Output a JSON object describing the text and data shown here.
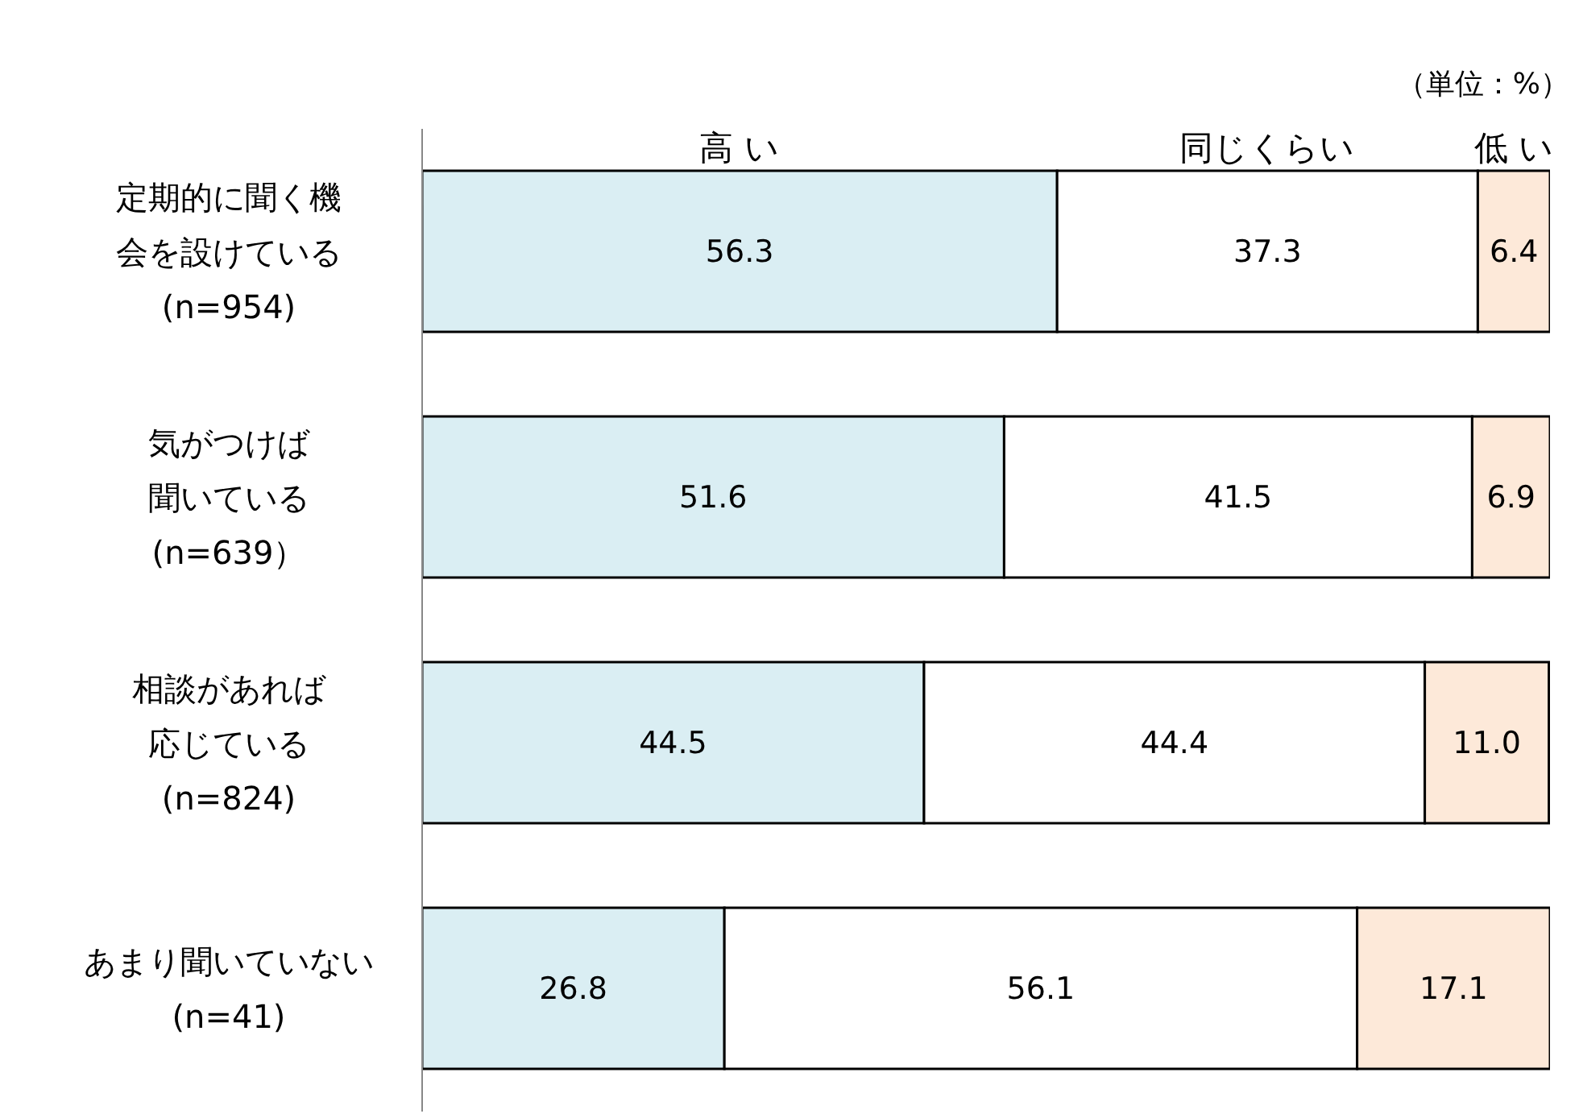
{
  "chart_data": {
    "type": "bar",
    "orientation": "horizontal",
    "stacked": true,
    "categories": [
      "定期的に聞く機会を設けている (n=954)",
      "気がつけば聞いている (n=639）",
      "相談があれば応じている (n=824)",
      "あまり聞いていない (n=41)"
    ],
    "series": [
      {
        "name": "高 い",
        "color": "#daeef3",
        "values": [
          56.3,
          51.6,
          44.5,
          26.8
        ],
        "value_labels": [
          "56.3",
          "51.6",
          "44.5",
          "26.8"
        ]
      },
      {
        "name": "同じくらい",
        "color": "#ffffff",
        "values": [
          37.3,
          41.5,
          44.4,
          56.1
        ],
        "value_labels": [
          "37.3",
          "41.5",
          "44.4",
          "56.1"
        ]
      },
      {
        "name": "低 い",
        "color": "#fde9d9",
        "values": [
          6.4,
          6.9,
          11.0,
          17.1
        ],
        "value_labels": [
          "6.4",
          "6.9",
          "11.0",
          "17.1"
        ]
      }
    ],
    "xlim": [
      0,
      100
    ],
    "tick_labels": "y",
    "legend": "top",
    "annotations": [
      "（単位：%）"
    ]
  }
}
